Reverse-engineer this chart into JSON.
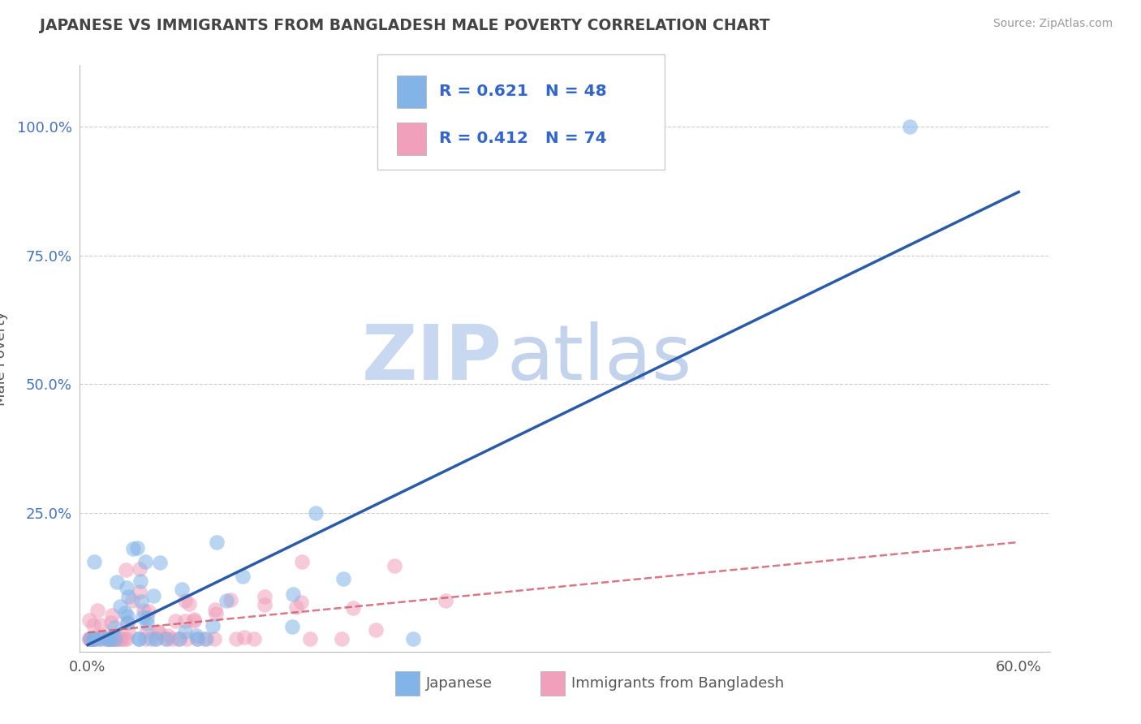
{
  "title": "JAPANESE VS IMMIGRANTS FROM BANGLADESH MALE POVERTY CORRELATION CHART",
  "source": "Source: ZipAtlas.com",
  "xlabel_japanese": "Japanese",
  "xlabel_bangladesh": "Immigrants from Bangladesh",
  "ylabel": "Male Poverty",
  "watermark_zip": "ZIP",
  "watermark_atlas": "atlas",
  "xlim": [
    -0.005,
    0.62
  ],
  "ylim": [
    -0.02,
    1.12
  ],
  "japanese_color": "#82B4E8",
  "bangladesh_color": "#F0A0BB",
  "japanese_line_color": "#2B5BA8",
  "bangladesh_line_color": "#D06070",
  "legend_text1": "R = 0.621   N = 48",
  "legend_text2": "R = 0.412   N = 74",
  "legend_color": "#3366CC",
  "ytick_color": "#4472C4",
  "ytick_labels": [
    "25.0%",
    "50.0%",
    "75.0%",
    "100.0%"
  ],
  "ytick_vals": [
    0.25,
    0.5,
    0.75,
    1.0
  ],
  "xtick_labels": [
    "0.0%",
    "60.0%"
  ],
  "xtick_vals": [
    0.0,
    0.6
  ],
  "grid_color": "#CCCCCC"
}
